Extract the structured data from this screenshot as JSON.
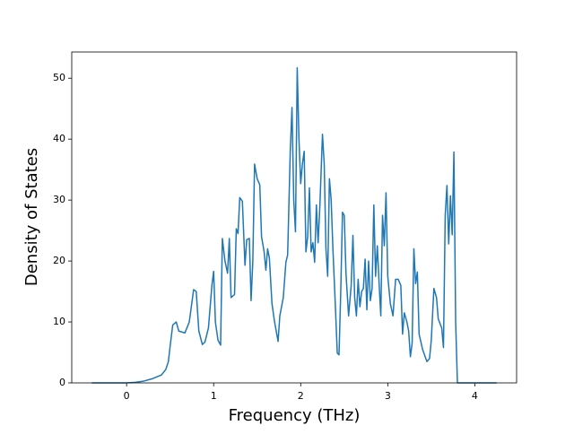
{
  "chart_data": {
    "type": "line",
    "xlabel": "Frequency (THz)",
    "ylabel": "Density of States",
    "x": [
      -0.4,
      0,
      0.1,
      0.2,
      0.3,
      0.4,
      0.45,
      0.48,
      0.5,
      0.53,
      0.57,
      0.6,
      0.67,
      0.72,
      0.77,
      0.8,
      0.83,
      0.87,
      0.9,
      0.94,
      0.98,
      1.0,
      1.02,
      1.05,
      1.08,
      1.1,
      1.13,
      1.16,
      1.18,
      1.2,
      1.24,
      1.26,
      1.28,
      1.3,
      1.33,
      1.36,
      1.38,
      1.41,
      1.43,
      1.45,
      1.47,
      1.5,
      1.53,
      1.55,
      1.58,
      1.6,
      1.62,
      1.64,
      1.67,
      1.7,
      1.74,
      1.76,
      1.8,
      1.83,
      1.85,
      1.88,
      1.9,
      1.92,
      1.94,
      1.96,
      1.98,
      2.0,
      2.02,
      2.04,
      2.06,
      2.08,
      2.1,
      2.12,
      2.14,
      2.16,
      2.18,
      2.2,
      2.22,
      2.25,
      2.27,
      2.29,
      2.31,
      2.33,
      2.35,
      2.37,
      2.4,
      2.42,
      2.44,
      2.46,
      2.48,
      2.5,
      2.52,
      2.55,
      2.58,
      2.6,
      2.62,
      2.64,
      2.66,
      2.68,
      2.7,
      2.72,
      2.74,
      2.76,
      2.78,
      2.8,
      2.82,
      2.84,
      2.86,
      2.88,
      2.9,
      2.92,
      2.94,
      2.96,
      2.98,
      3.0,
      3.03,
      3.06,
      3.09,
      3.12,
      3.15,
      3.17,
      3.19,
      3.22,
      3.24,
      3.26,
      3.28,
      3.3,
      3.32,
      3.34,
      3.36,
      3.4,
      3.45,
      3.48,
      3.5,
      3.53,
      3.56,
      3.58,
      3.62,
      3.64,
      3.66,
      3.68,
      3.7,
      3.72,
      3.74,
      3.76,
      3.78,
      3.8,
      4.25
    ],
    "series": [
      {
        "color": "#1f77b4",
        "values": [
          0,
          0,
          0.1,
          0.3,
          0.7,
          1.3,
          2.2,
          3.5,
          6,
          9.5,
          10,
          8.5,
          8.2,
          10,
          15.3,
          15,
          8.5,
          6.3,
          6.7,
          9,
          16,
          18.3,
          10,
          7,
          6.2,
          23.7,
          20,
          18,
          23.7,
          14,
          14.5,
          25.3,
          24.5,
          30.4,
          29.8,
          19.3,
          23.5,
          23.7,
          13.5,
          20,
          35.9,
          33.5,
          32.5,
          24,
          21.5,
          18.5,
          22,
          20.5,
          13,
          10,
          6.8,
          11,
          14,
          19.8,
          21,
          38,
          45.2,
          30,
          24.8,
          51.7,
          40,
          32.7,
          36,
          38,
          21.5,
          24,
          32,
          21.5,
          23,
          19.8,
          29.2,
          23,
          29,
          40.8,
          36,
          22,
          17.5,
          33.5,
          30,
          22,
          12,
          4.9,
          4.6,
          15,
          28,
          27.5,
          18,
          11,
          16,
          24.2,
          14,
          11,
          17,
          12.5,
          15,
          15.5,
          20.3,
          12,
          20,
          13.5,
          15.5,
          29.2,
          17.5,
          22.5,
          16.5,
          11,
          27.5,
          22.5,
          31.2,
          17.5,
          13,
          11,
          17,
          17,
          16,
          8,
          11.5,
          10,
          8.5,
          4.3,
          6.5,
          22,
          16.3,
          18.2,
          8,
          5.5,
          3.5,
          4,
          7,
          15.5,
          14,
          10.5,
          9,
          5.8,
          27.5,
          32.4,
          22.8,
          30.7,
          24.3,
          37.9,
          10,
          0,
          0
        ]
      }
    ],
    "xlim": [
      -0.63,
      4.48
    ],
    "ylim": [
      0,
      54.3
    ],
    "xticks": [
      0,
      1,
      2,
      3,
      4
    ],
    "yticks": [
      0,
      10,
      20,
      30,
      40,
      50
    ]
  }
}
